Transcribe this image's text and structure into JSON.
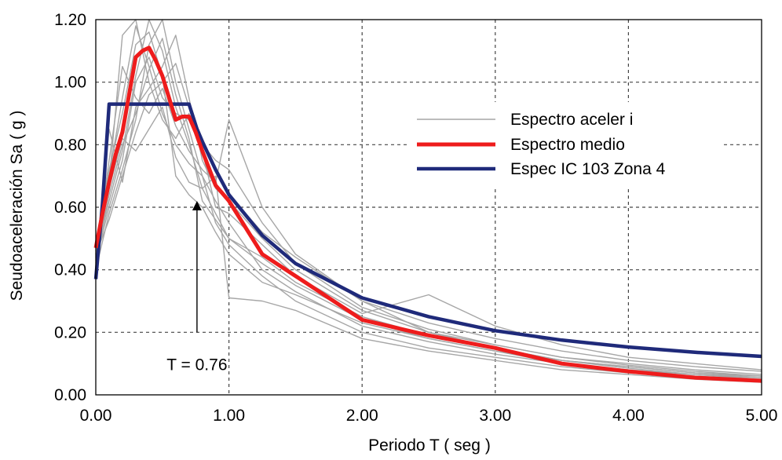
{
  "chart_data": {
    "type": "line",
    "title": "",
    "xlabel": "Periodo  T ( seg )",
    "ylabel": "Seudoaceleración  Sa ( g )",
    "xlim": [
      0,
      5
    ],
    "ylim": [
      0,
      1.2
    ],
    "x_ticks": [
      0,
      1,
      2,
      3,
      4,
      5
    ],
    "x_tick_labels": [
      "0.00",
      "1.00",
      "2.00",
      "3.00",
      "4.00",
      "5.00"
    ],
    "y_ticks": [
      0,
      0.2,
      0.4,
      0.6,
      0.8,
      1.0,
      1.2
    ],
    "y_tick_labels": [
      "0.00",
      "0.20",
      "0.40",
      "0.60",
      "0.80",
      "1.00",
      "1.20"
    ],
    "grid": true,
    "legend_position": "upper-right",
    "legend": [
      "Espectro aceler i",
      "Espectro medio",
      "Espec IC 103 Zona 4"
    ],
    "colors": {
      "records": "#a6a6a6",
      "mean": "#ee1c1c",
      "code": "#1f2a7a",
      "grid": "#444444",
      "axis": "#000000"
    },
    "annotation": {
      "text": "T = 0.76",
      "x": 0.76,
      "y_from": 0.2,
      "y_to": 0.62
    },
    "series": [
      {
        "name": "Espectro aceler i",
        "role": "records",
        "lines": [
          {
            "x": [
              0,
              0.1,
              0.2,
              0.3,
              0.4,
              0.5,
              0.6,
              0.7,
              0.8,
              0.9,
              1.0,
              1.25,
              1.5,
              2.0,
              2.5,
              3.0,
              3.5,
              4.0,
              4.5,
              5.0
            ],
            "y": [
              0.46,
              0.7,
              0.95,
              1.18,
              1.05,
              0.9,
              0.8,
              0.74,
              0.7,
              0.62,
              0.55,
              0.4,
              0.33,
              0.22,
              0.17,
              0.13,
              0.1,
              0.08,
              0.065,
              0.055
            ]
          },
          {
            "x": [
              0,
              0.1,
              0.2,
              0.3,
              0.4,
              0.5,
              0.6,
              0.7,
              0.8,
              0.9,
              1.0,
              1.25,
              1.5,
              2.0,
              2.5,
              3.0,
              3.5,
              4.0,
              4.5,
              5.0
            ],
            "y": [
              0.44,
              0.62,
              0.78,
              1.02,
              1.2,
              1.1,
              0.92,
              0.8,
              0.66,
              0.58,
              0.5,
              0.44,
              0.36,
              0.25,
              0.19,
              0.15,
              0.11,
              0.09,
              0.07,
              0.06
            ]
          },
          {
            "x": [
              0,
              0.1,
              0.2,
              0.3,
              0.4,
              0.5,
              0.6,
              0.7,
              0.8,
              0.9,
              1.0,
              1.25,
              1.5,
              2.0,
              2.5,
              3.0,
              3.5,
              4.0,
              4.5,
              5.0
            ],
            "y": [
              0.42,
              0.85,
              0.68,
              0.92,
              0.98,
              1.05,
              1.15,
              0.95,
              0.75,
              0.66,
              0.62,
              0.5,
              0.4,
              0.27,
              0.2,
              0.16,
              0.12,
              0.1,
              0.08,
              0.065
            ]
          },
          {
            "x": [
              0,
              0.1,
              0.2,
              0.3,
              0.4,
              0.5,
              0.6,
              0.7,
              0.8,
              0.9,
              1.0,
              1.25,
              1.5,
              2.0,
              2.5,
              3.0,
              3.5,
              4.0,
              4.5,
              5.0
            ],
            "y": [
              0.4,
              0.58,
              0.72,
              0.88,
              1.12,
              1.2,
              1.0,
              0.85,
              0.7,
              0.55,
              0.48,
              0.38,
              0.3,
              0.2,
              0.15,
              0.12,
              0.09,
              0.07,
              0.055,
              0.045
            ]
          },
          {
            "x": [
              0,
              0.1,
              0.2,
              0.3,
              0.4,
              0.5,
              0.6,
              0.7,
              0.8,
              0.9,
              1.0,
              1.25,
              1.5,
              2.0,
              2.5,
              3.0,
              3.5,
              4.0,
              4.5,
              5.0
            ],
            "y": [
              0.45,
              0.75,
              1.05,
              0.95,
              0.9,
              0.98,
              0.86,
              0.78,
              0.72,
              0.68,
              0.88,
              0.6,
              0.45,
              0.3,
              0.23,
              0.18,
              0.14,
              0.11,
              0.09,
              0.075
            ]
          },
          {
            "x": [
              0,
              0.1,
              0.2,
              0.3,
              0.4,
              0.5,
              0.6,
              0.7,
              0.8,
              0.9,
              1.0,
              1.25,
              1.5,
              2.0,
              2.5,
              3.0,
              3.5,
              4.0,
              4.5,
              5.0
            ],
            "y": [
              0.47,
              0.66,
              0.82,
              0.78,
              0.85,
              0.92,
              0.76,
              0.68,
              0.66,
              0.7,
              0.31,
              0.3,
              0.27,
              0.18,
              0.14,
              0.11,
              0.08,
              0.065,
              0.05,
              0.04
            ]
          },
          {
            "x": [
              0,
              0.1,
              0.2,
              0.3,
              0.4,
              0.5,
              0.6,
              0.7,
              0.8,
              0.9,
              1.0,
              1.25,
              1.5,
              2.0,
              2.5,
              3.0,
              3.5,
              4.0,
              4.5,
              5.0
            ],
            "y": [
              0.43,
              0.6,
              0.75,
              1.0,
              1.08,
              0.95,
              0.9,
              0.88,
              0.8,
              0.75,
              0.72,
              0.55,
              0.42,
              0.28,
              0.21,
              0.16,
              0.12,
              0.095,
              0.075,
              0.06
            ]
          },
          {
            "x": [
              0,
              0.1,
              0.2,
              0.3,
              0.4,
              0.5,
              0.6,
              0.7,
              0.8,
              0.9,
              1.0,
              1.25,
              1.5,
              2.0,
              2.5,
              3.0,
              3.5,
              4.0,
              4.5,
              5.0
            ],
            "y": [
              0.46,
              0.72,
              0.9,
              1.12,
              1.16,
              1.02,
              0.7,
              0.64,
              0.6,
              0.52,
              0.45,
              0.36,
              0.32,
              0.23,
              0.18,
              0.14,
              0.1,
              0.08,
              0.06,
              0.05
            ]
          },
          {
            "x": [
              0,
              0.1,
              0.2,
              0.3,
              0.4,
              0.5,
              0.6,
              0.7,
              0.8,
              0.9,
              1.0,
              1.25,
              1.5,
              2.0,
              2.5,
              3.0,
              3.5,
              4.0,
              4.5,
              5.0
            ],
            "y": [
              0.41,
              0.68,
              1.15,
              1.2,
              1.0,
              0.88,
              0.82,
              0.9,
              0.78,
              0.6,
              0.58,
              0.48,
              0.38,
              0.26,
              0.32,
              0.22,
              0.16,
              0.12,
              0.1,
              0.08
            ]
          },
          {
            "x": [
              0,
              0.1,
              0.2,
              0.3,
              0.4,
              0.5,
              0.6,
              0.7,
              0.8,
              0.9,
              1.0,
              1.25,
              1.5,
              2.0,
              2.5,
              3.0,
              3.5,
              4.0,
              4.5,
              5.0
            ],
            "y": [
              0.44,
              0.64,
              0.8,
              0.9,
              1.04,
              1.14,
              0.96,
              0.82,
              0.62,
              0.56,
              0.5,
              0.42,
              0.35,
              0.24,
              0.18,
              0.14,
              0.11,
              0.085,
              0.065,
              0.05
            ]
          },
          {
            "x": [
              0,
              0.1,
              0.2,
              0.3,
              0.4,
              0.5,
              0.6,
              0.7,
              0.8,
              0.9,
              1.0,
              1.25,
              1.5,
              2.0,
              2.5,
              3.0,
              3.5,
              4.0,
              4.5,
              5.0
            ],
            "y": [
              0.45,
              0.56,
              0.7,
              0.84,
              0.96,
              1.0,
              1.06,
              0.92,
              0.82,
              0.72,
              0.64,
              0.52,
              0.44,
              0.3,
              0.2,
              0.15,
              0.11,
              0.09,
              0.07,
              0.055
            ]
          }
        ]
      },
      {
        "name": "Espectro medio",
        "role": "mean",
        "x": [
          0,
          0.05,
          0.1,
          0.15,
          0.2,
          0.25,
          0.3,
          0.35,
          0.4,
          0.45,
          0.5,
          0.55,
          0.6,
          0.65,
          0.7,
          0.75,
          0.8,
          0.9,
          1.0,
          1.25,
          1.5,
          2.0,
          2.5,
          3.0,
          3.5,
          4.0,
          4.5,
          5.0
        ],
        "y": [
          0.47,
          0.58,
          0.68,
          0.77,
          0.84,
          0.96,
          1.08,
          1.1,
          1.11,
          1.07,
          1.02,
          0.95,
          0.88,
          0.89,
          0.89,
          0.84,
          0.78,
          0.67,
          0.62,
          0.45,
          0.38,
          0.24,
          0.19,
          0.15,
          0.1,
          0.075,
          0.055,
          0.045
        ]
      },
      {
        "name": "Espec IC 103 Zona 4",
        "role": "code",
        "x": [
          0,
          0.05,
          0.1,
          0.15,
          0.2,
          0.3,
          0.4,
          0.5,
          0.6,
          0.7,
          0.76,
          0.8,
          0.9,
          1.0,
          1.25,
          1.5,
          2.0,
          2.5,
          3.0,
          3.5,
          4.0,
          4.5,
          5.0
        ],
        "y": [
          0.37,
          0.61,
          0.93,
          0.93,
          0.93,
          0.93,
          0.93,
          0.93,
          0.93,
          0.93,
          0.85,
          0.81,
          0.72,
          0.64,
          0.51,
          0.42,
          0.31,
          0.25,
          0.205,
          0.175,
          0.153,
          0.136,
          0.123
        ]
      }
    ]
  }
}
